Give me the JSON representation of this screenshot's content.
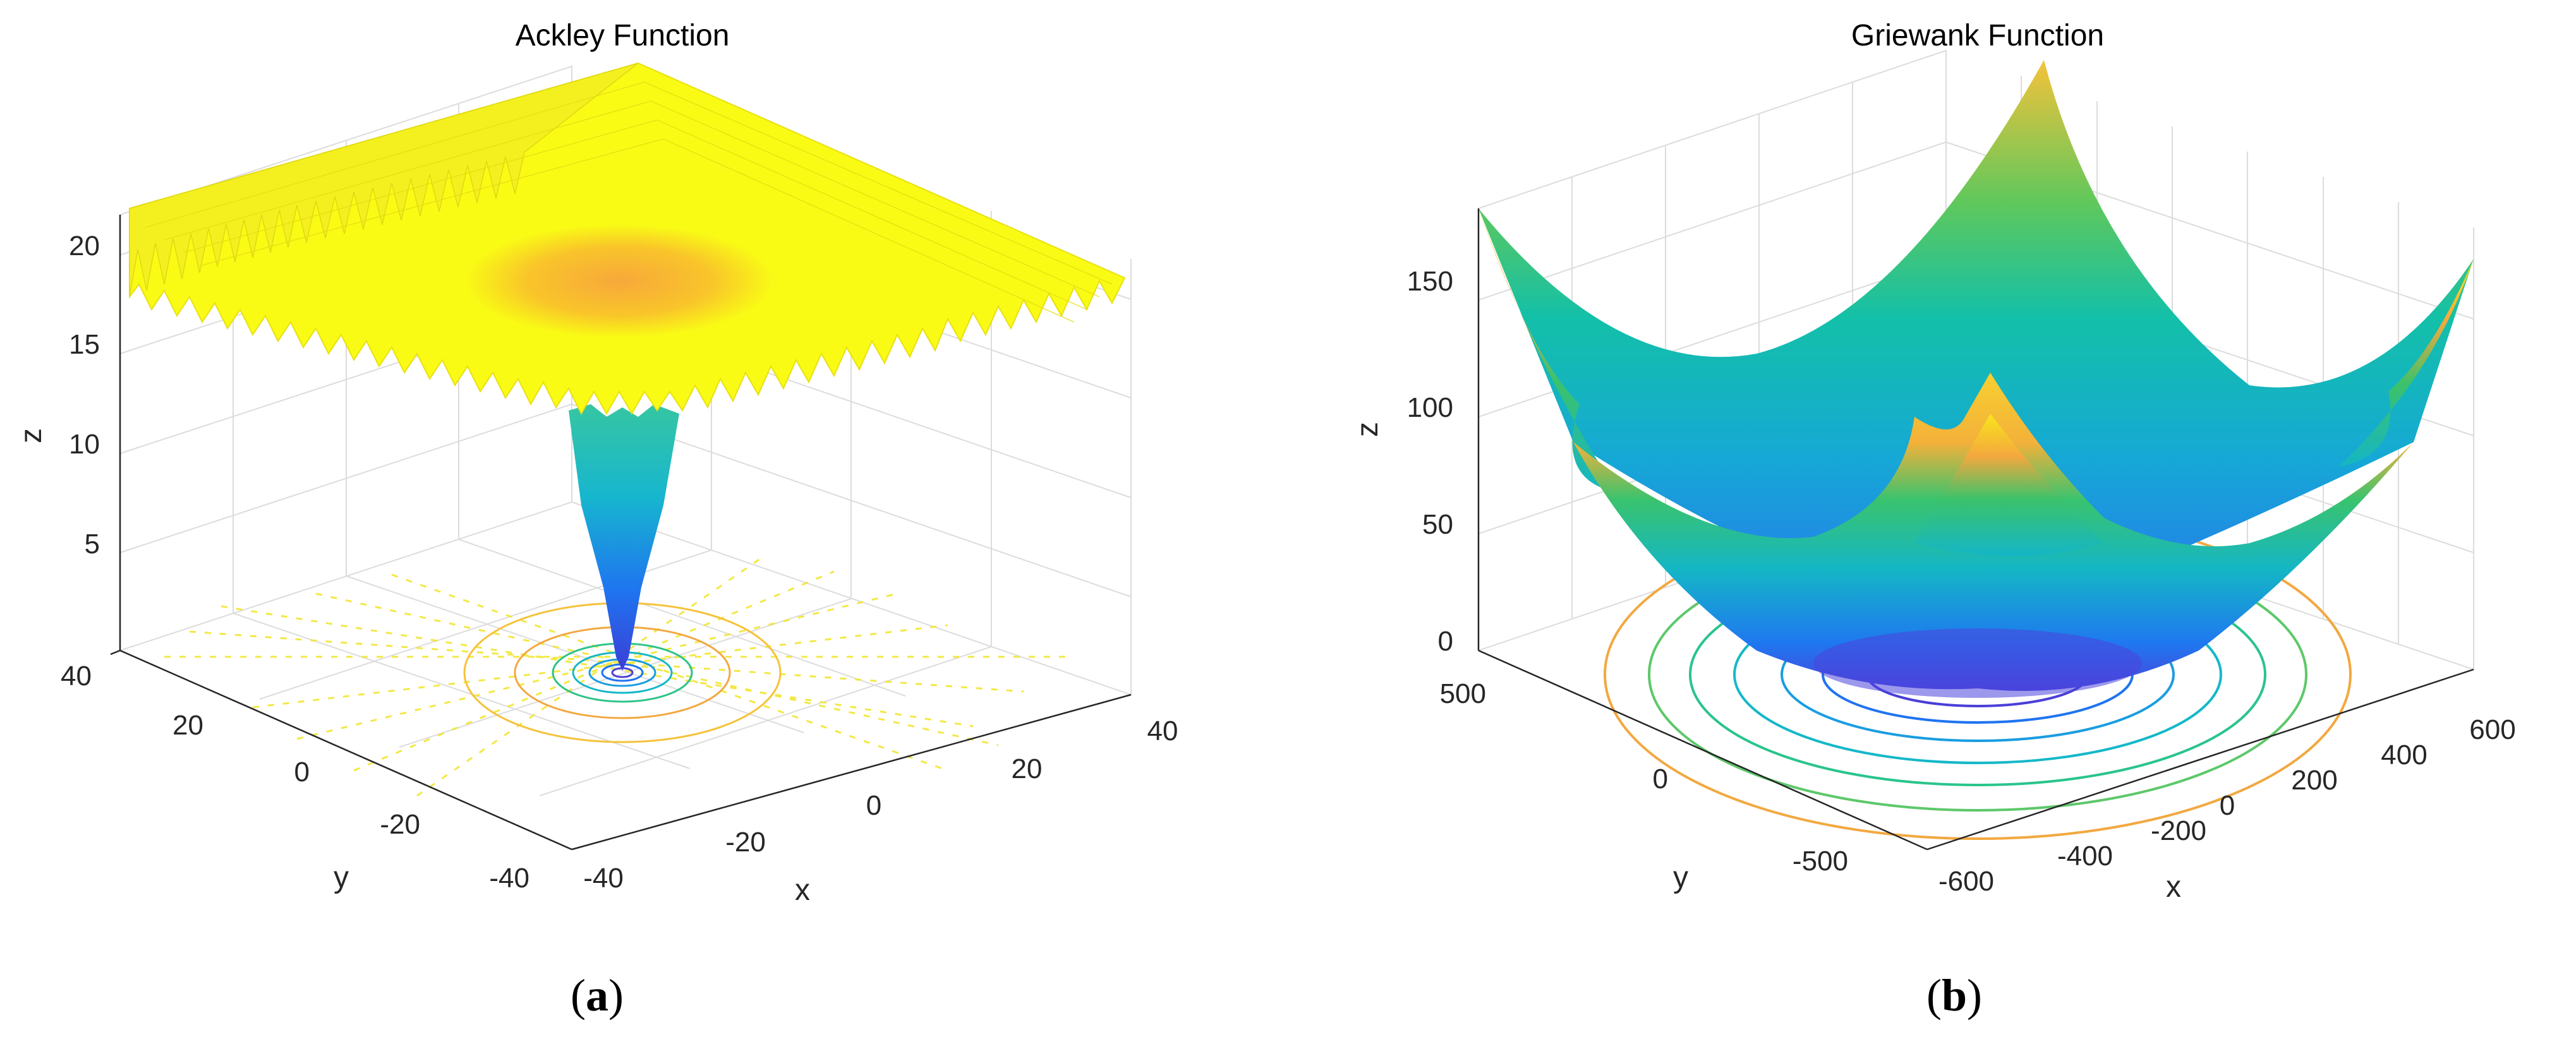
{
  "chart_data": [
    {
      "type": "surface",
      "title": "Ackley Function",
      "xlabel": "x",
      "ylabel": "y",
      "zlabel": "z",
      "x_ticks": [
        -40,
        -20,
        0,
        20,
        40
      ],
      "y_ticks": [
        -40,
        -20,
        0,
        20,
        40
      ],
      "z_ticks": [
        5,
        10,
        15,
        20
      ],
      "xlim": [
        -40,
        40
      ],
      "ylim": [
        -40,
        40
      ],
      "zlim": [
        0,
        22
      ],
      "global_minimum": {
        "x": 0,
        "y": 0,
        "z": 0
      },
      "plateau_value": 21,
      "contour_projection": true,
      "colormap": "parula",
      "grid": true,
      "caption_open": "(",
      "caption_letter": "a",
      "caption_close": ")"
    },
    {
      "type": "surface",
      "title": "Griewank Function",
      "xlabel": "x",
      "ylabel": "y",
      "zlabel": "z",
      "x_ticks": [
        -600,
        -400,
        -200,
        0,
        200,
        400,
        600
      ],
      "y_ticks": [
        -500,
        0,
        500
      ],
      "z_ticks": [
        0,
        50,
        100,
        150
      ],
      "xlim": [
        -600,
        600
      ],
      "ylim": [
        -600,
        600
      ],
      "zlim": [
        0,
        180
      ],
      "global_minimum": {
        "x": 0,
        "y": 0,
        "z": 0
      },
      "contour_projection": true,
      "colormap": "parula",
      "grid": true,
      "caption_open": "(",
      "caption_letter": "b",
      "caption_close": ")"
    }
  ],
  "colors": {
    "yellow": "#f9fb15",
    "orange": "#f7b43a",
    "green": "#2ac48c",
    "teal": "#14b8c8",
    "blue": "#1f74f0",
    "indigo": "#4a3fd8"
  }
}
